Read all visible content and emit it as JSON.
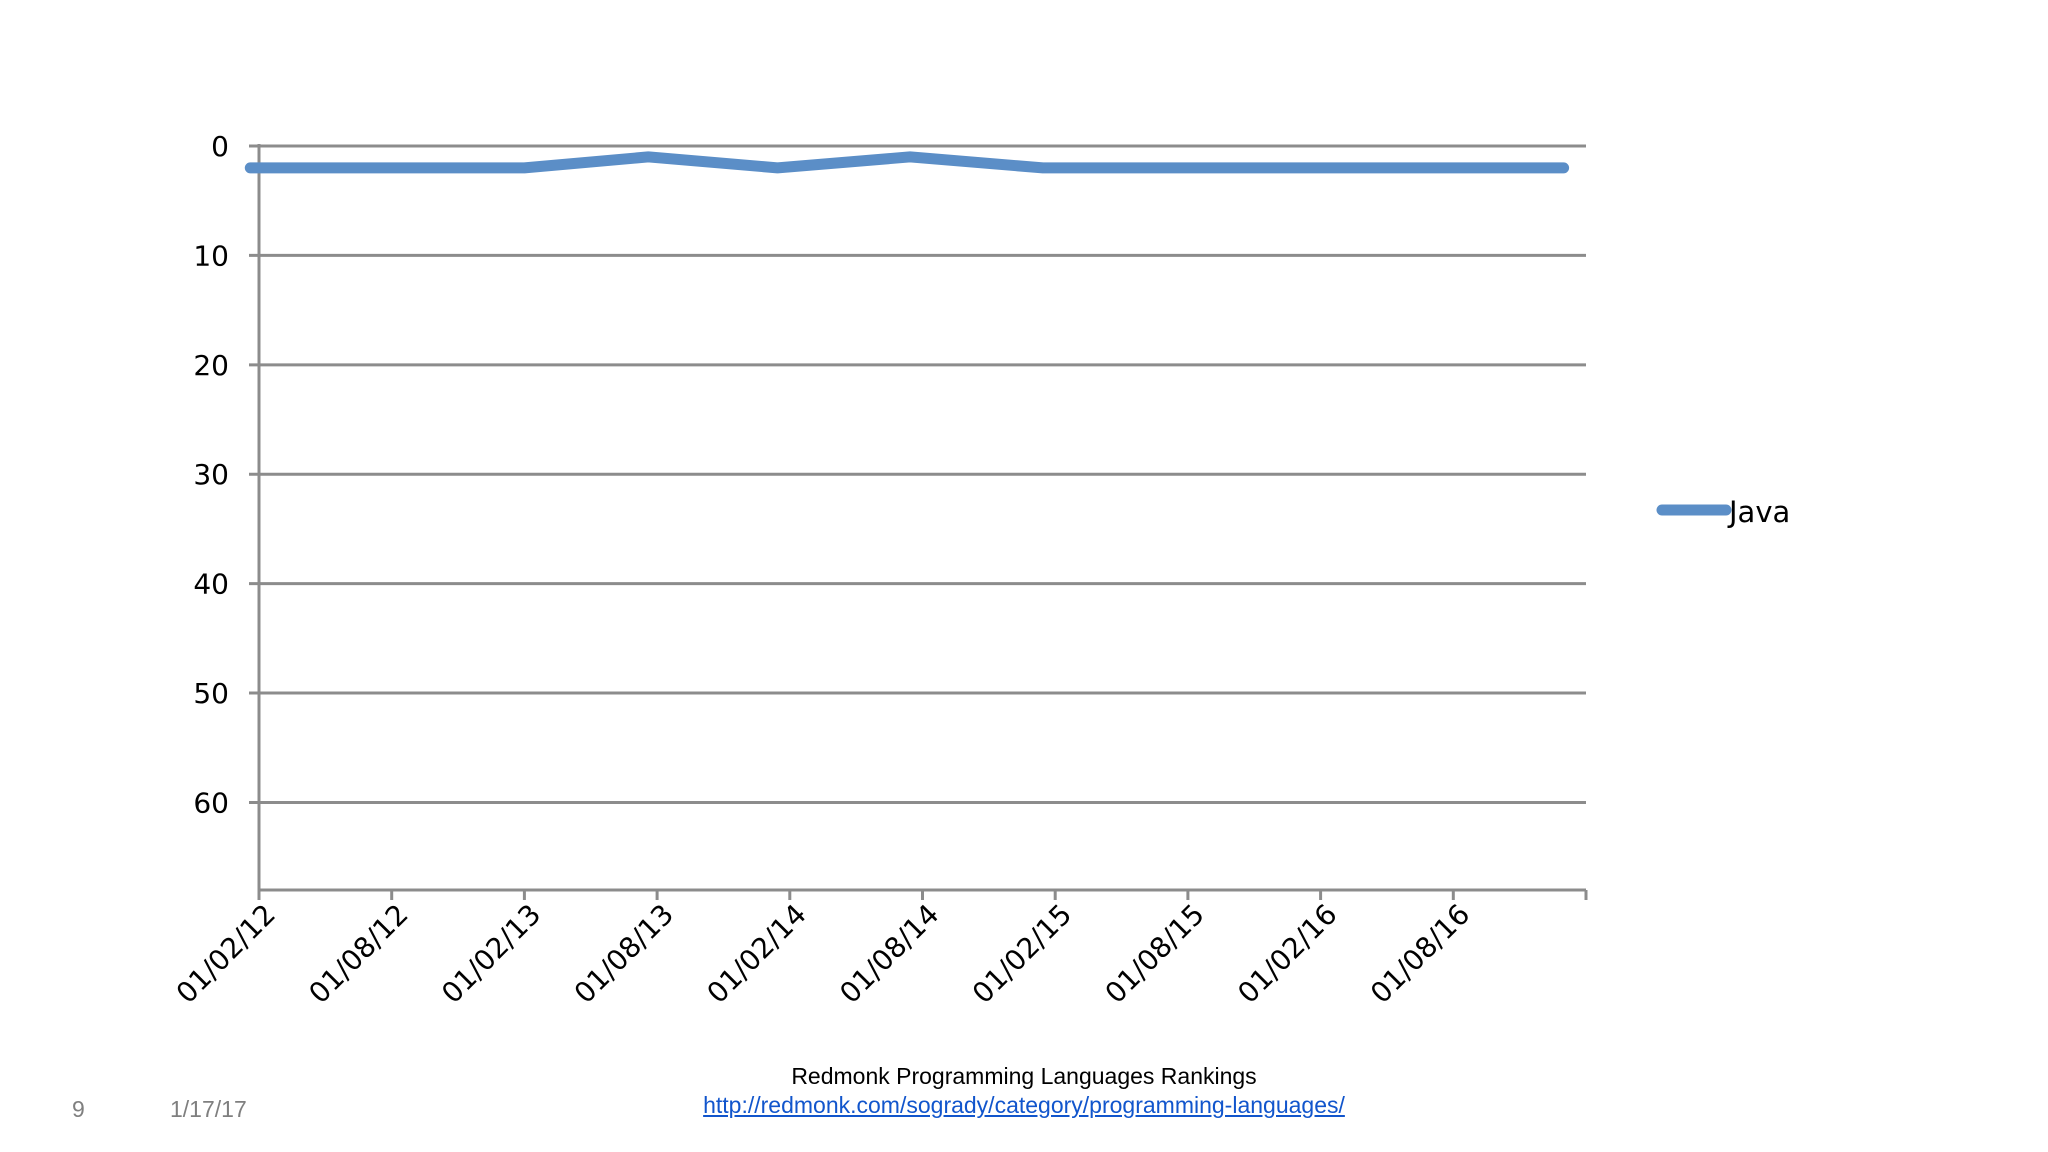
{
  "slide": {
    "number": "9",
    "date": "1/17/17"
  },
  "source": {
    "title": "Redmonk Programming Languages Rankings",
    "link": "http://redmonk.com/sogrady/category/programming-languages/"
  },
  "colors": {
    "series": "#5b8ec7",
    "grid": "#8c8c8c",
    "link": "#1155cc"
  },
  "chart_data": {
    "type": "line",
    "title": "",
    "xlabel": "",
    "ylabel": "",
    "y_reversed": true,
    "ylim": [
      0,
      68
    ],
    "y_ticks": [
      0,
      10,
      20,
      30,
      40,
      50,
      60
    ],
    "x_ticks": [
      "01/02/12",
      "01/08/12",
      "01/02/13",
      "01/08/13",
      "01/02/14",
      "01/08/14",
      "01/02/15",
      "01/08/15",
      "01/02/16",
      "01/08/16"
    ],
    "grid": true,
    "legend": "right",
    "series": [
      {
        "name": "Java",
        "color": "#5b8ec7",
        "x": [
          "2012-01-20",
          "2012-09-01",
          "2013-02-01",
          "2013-07-20",
          "2014-01-15",
          "2014-07-15",
          "2015-01-15",
          "2015-07-01",
          "2016-01-01",
          "2016-07-01",
          "2017-01-01"
        ],
        "values": [
          2,
          2,
          2,
          1,
          2,
          1,
          2,
          2,
          2,
          2,
          2
        ]
      }
    ]
  }
}
